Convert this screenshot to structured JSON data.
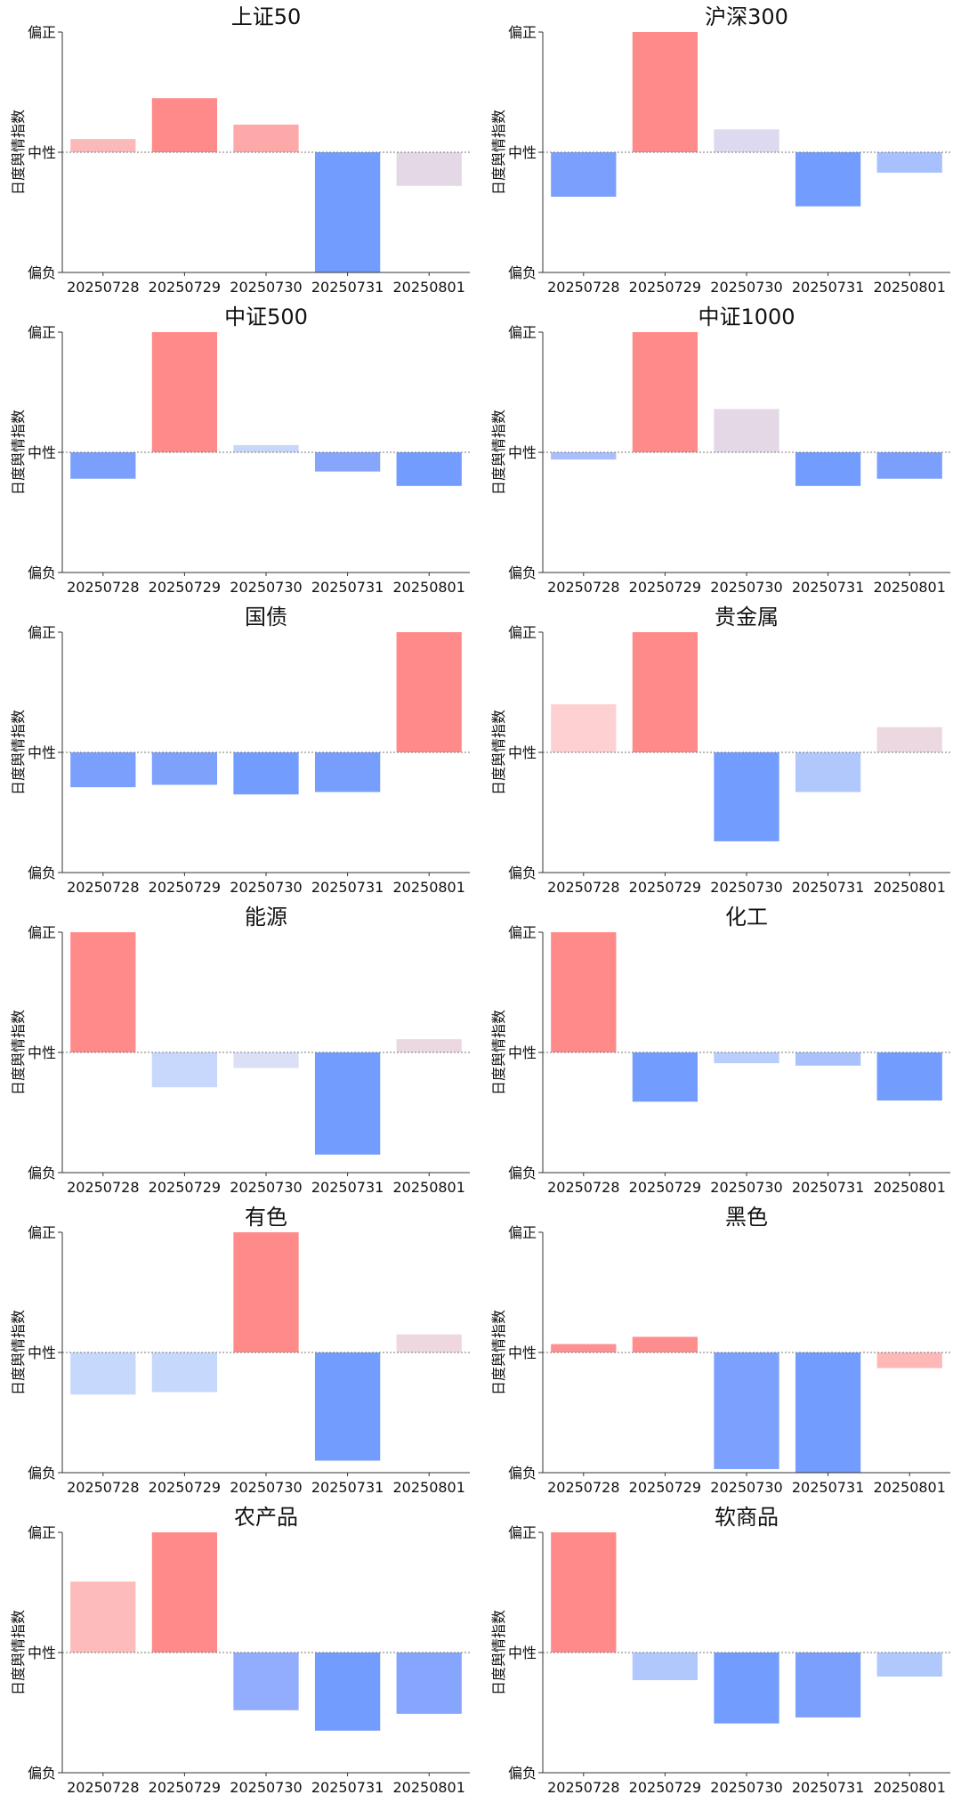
{
  "page": {
    "ylabel": "日度舆情指数",
    "ytick_labels": [
      "偏正",
      "中性",
      "偏负"
    ],
    "categories": [
      "20250728",
      "20250729",
      "20250730",
      "20250731",
      "20250801"
    ]
  },
  "chart_data": [
    {
      "type": "bar",
      "title": "上证50",
      "ylabel": "日度舆情指数",
      "categories": [
        "20250728",
        "20250729",
        "20250730",
        "20250731",
        "20250801"
      ],
      "values": [
        0.11,
        0.45,
        0.23,
        -1.0,
        -0.28
      ],
      "ylim": [
        -1,
        1
      ],
      "colors": [
        "#fbbab9",
        "#ff8a8a",
        "#fea9a9",
        "#739cff",
        "#e4d8e7"
      ]
    },
    {
      "type": "bar",
      "title": "沪深300",
      "ylabel": "日度舆情指数",
      "categories": [
        "20250728",
        "20250729",
        "20250730",
        "20250731",
        "20250801"
      ],
      "values": [
        -0.37,
        1.0,
        0.19,
        -0.45,
        -0.17
      ],
      "ylim": [
        -1,
        1
      ],
      "colors": [
        "#7b9ffc",
        "#ff8a8a",
        "#ddd9ef",
        "#739cff",
        "#a8c1fe"
      ]
    },
    {
      "type": "bar",
      "title": "中证500",
      "ylabel": "日度舆情指数",
      "categories": [
        "20250728",
        "20250729",
        "20250730",
        "20250731",
        "20250801"
      ],
      "values": [
        -0.22,
        1.0,
        0.06,
        -0.16,
        -0.28
      ],
      "ylim": [
        -1,
        1
      ],
      "colors": [
        "#7b9ffc",
        "#ff8a8a",
        "#c7d6fb",
        "#86a6fc",
        "#739cff"
      ]
    },
    {
      "type": "bar",
      "title": "中证1000",
      "ylabel": "日度舆情指数",
      "categories": [
        "20250728",
        "20250729",
        "20250730",
        "20250731",
        "20250801"
      ],
      "values": [
        -0.06,
        1.0,
        0.36,
        -0.28,
        -0.22
      ],
      "ylim": [
        -1,
        1
      ],
      "colors": [
        "#a9bffc",
        "#ff8a8a",
        "#e4d8e7",
        "#739cff",
        "#7b9ffc"
      ]
    },
    {
      "type": "bar",
      "title": "国债",
      "ylabel": "日度舆情指数",
      "categories": [
        "20250728",
        "20250729",
        "20250730",
        "20250731",
        "20250801"
      ],
      "values": [
        -0.29,
        -0.27,
        -0.35,
        -0.33,
        1.0
      ],
      "ylim": [
        -1,
        1
      ],
      "colors": [
        "#7b9ffc",
        "#7ea2fc",
        "#739cff",
        "#789efd",
        "#ff8a8a"
      ]
    },
    {
      "type": "bar",
      "title": "贵金属",
      "ylabel": "日度舆情指数",
      "categories": [
        "20250728",
        "20250729",
        "20250730",
        "20250731",
        "20250801"
      ],
      "values": [
        0.4,
        1.0,
        -0.74,
        -0.33,
        0.21
      ],
      "ylim": [
        -1,
        1
      ],
      "colors": [
        "#fdd0d2",
        "#ff8a8a",
        "#739cff",
        "#b1c8fd",
        "#ecd8e1"
      ]
    },
    {
      "type": "bar",
      "title": "能源",
      "ylabel": "日度舆情指数",
      "categories": [
        "20250728",
        "20250729",
        "20250730",
        "20250731",
        "20250801"
      ],
      "values": [
        1.0,
        -0.29,
        -0.13,
        -0.85,
        0.11
      ],
      "ylim": [
        -1,
        1
      ],
      "colors": [
        "#ff8a8a",
        "#c8d8fd",
        "#dbe0f7",
        "#739cff",
        "#ecd8e1"
      ]
    },
    {
      "type": "bar",
      "title": "化工",
      "ylabel": "日度舆情指数",
      "categories": [
        "20250728",
        "20250729",
        "20250730",
        "20250731",
        "20250801"
      ],
      "values": [
        1.0,
        -0.41,
        -0.09,
        -0.11,
        -0.4
      ],
      "ylim": [
        -1,
        1
      ],
      "colors": [
        "#ff8a8a",
        "#739cff",
        "#b9cefd",
        "#a9c2fd",
        "#739cff"
      ]
    },
    {
      "type": "bar",
      "title": "有色",
      "ylabel": "日度舆情指数",
      "categories": [
        "20250728",
        "20250729",
        "20250730",
        "20250731",
        "20250801"
      ],
      "values": [
        -0.35,
        -0.33,
        1.0,
        -0.9,
        0.15
      ],
      "ylim": [
        -1,
        1
      ],
      "colors": [
        "#c7d8fd",
        "#c7d8fd",
        "#ff8a8a",
        "#739cff",
        "#eed7e0"
      ]
    },
    {
      "type": "bar",
      "title": "黑色",
      "ylabel": "日度舆情指数",
      "categories": [
        "20250728",
        "20250729",
        "20250730",
        "20250731",
        "20250801"
      ],
      "values": [
        0.07,
        0.13,
        -0.97,
        -1.0,
        -0.13
      ],
      "ylim": [
        -1,
        1
      ],
      "colors": [
        "#fd9090",
        "#fe8e8e",
        "#7ba0fe",
        "#739cff",
        "#feb8b8"
      ]
    },
    {
      "type": "bar",
      "title": "农产品",
      "ylabel": "日度舆情指数",
      "categories": [
        "20250728",
        "20250729",
        "20250730",
        "20250731",
        "20250801"
      ],
      "values": [
        0.59,
        1.0,
        -0.48,
        -0.65,
        -0.51
      ],
      "ylim": [
        -1,
        1
      ],
      "colors": [
        "#febbbb",
        "#ff8a8a",
        "#92adfe",
        "#739cff",
        "#86a5fd"
      ]
    },
    {
      "type": "bar",
      "title": "软商品",
      "ylabel": "日度舆情指数",
      "categories": [
        "20250728",
        "20250729",
        "20250730",
        "20250731",
        "20250801"
      ],
      "values": [
        1.0,
        -0.23,
        -0.59,
        -0.54,
        -0.2
      ],
      "ylim": [
        -1,
        1
      ],
      "colors": [
        "#ff8a8a",
        "#b1c8fd",
        "#739cff",
        "#7b9ffc",
        "#b1c8fd"
      ]
    }
  ]
}
